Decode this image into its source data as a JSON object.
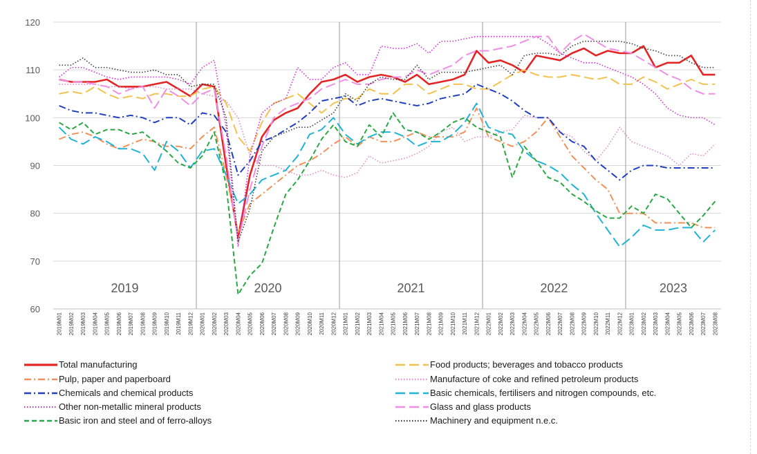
{
  "chart_data": {
    "type": "line",
    "title": "",
    "xlabel": "",
    "ylabel": "",
    "ylim": [
      60,
      120
    ],
    "yticks": [
      60,
      70,
      80,
      90,
      100,
      110,
      120
    ],
    "grid": true,
    "legend_position": "bottom",
    "x": [
      "2019M01",
      "2019M02",
      "2019M03",
      "2019M04",
      "2019M05",
      "2019M06",
      "2019M07",
      "2019M08",
      "2019M09",
      "2019M10",
      "2019M11",
      "2019M12",
      "2020M01",
      "2020M02",
      "2020M03",
      "2020M04",
      "2020M05",
      "2020M06",
      "2020M07",
      "2020M08",
      "2020M09",
      "2020M10",
      "2020M11",
      "2020M12",
      "2021M01",
      "2021M02",
      "2021M03",
      "2021M04",
      "2021M05",
      "2021M06",
      "2021M07",
      "2021M08",
      "2021M09",
      "2021M10",
      "2021M11",
      "2021M12",
      "2022M01",
      "2022M02",
      "2022M03",
      "2022M04",
      "2022M05",
      "2022M06",
      "2022M07",
      "2022M08",
      "2022M09",
      "2022M10",
      "2022M11",
      "2022M12",
      "2023M01",
      "2023M02",
      "2023M03",
      "2023M04",
      "2023M05",
      "2023M06",
      "2023M07",
      "2023M08"
    ],
    "year_labels": [
      "2019",
      "2020",
      "2021",
      "2022",
      "2023"
    ],
    "series": [
      {
        "name": "Total manufacturing",
        "color": "#e32424",
        "dash": "solid",
        "values": [
          108,
          107.5,
          107.5,
          107.5,
          108,
          106.5,
          106.5,
          106.5,
          107,
          107.5,
          106,
          104.5,
          107,
          106.5,
          90,
          75,
          88,
          96,
          99.5,
          101,
          102,
          105,
          107.5,
          108,
          109,
          107.5,
          108.5,
          109,
          108.5,
          107.5,
          109,
          107,
          107.5,
          108,
          109,
          114,
          111.5,
          112,
          111,
          109.5,
          113,
          112.5,
          112,
          113.5,
          114.5,
          113,
          114,
          113.5,
          113.5,
          115,
          110.5,
          111.5,
          111.5,
          113,
          109,
          109
        ]
      },
      {
        "name": "Food products; beverages and tobacco products",
        "color": "#f2c14e",
        "dash": "longdash",
        "values": [
          105,
          105.5,
          105,
          106.5,
          105,
          104,
          104.5,
          104,
          105,
          105,
          104.5,
          104.5,
          106,
          106.5,
          103,
          96,
          93,
          99,
          103,
          104,
          105,
          103,
          101,
          103,
          104,
          104,
          106,
          105,
          105,
          107,
          107,
          105,
          106,
          107,
          107,
          106,
          106,
          107.5,
          109,
          110,
          109,
          108.5,
          108.5,
          109,
          108.5,
          108,
          108.5,
          107,
          107,
          108.5,
          107.5,
          106,
          107,
          108,
          107,
          107
        ]
      },
      {
        "name": "Pulp, paper and paperboard",
        "color": "#f0915a",
        "dash": "dashdot",
        "values": [
          95.5,
          96.5,
          97,
          96,
          94.5,
          93.5,
          94.5,
          95.5,
          95,
          94,
          94,
          93.5,
          96,
          98,
          88,
          76,
          82,
          84,
          86,
          88,
          90,
          91,
          92.5,
          94.5,
          96,
          94,
          96,
          95,
          95,
          96,
          97,
          96,
          96,
          96,
          97,
          102,
          96,
          95,
          94,
          95,
          97,
          100,
          96,
          92,
          89.5,
          87,
          85,
          80,
          80,
          80,
          78,
          78,
          78,
          78,
          77,
          77
        ]
      },
      {
        "name": "Manufacture of coke and refined petroleum products",
        "color": "#d98cc8",
        "dash": "dotted",
        "values": [
          107,
          107,
          107,
          107,
          106.5,
          106.5,
          106,
          106.5,
          106.5,
          106,
          106,
          106,
          105,
          104.5,
          103.5,
          100,
          92,
          90,
          90,
          89,
          88,
          88,
          89,
          88,
          87.5,
          88.5,
          92,
          90.5,
          91,
          91.5,
          92.5,
          94,
          97,
          98,
          95,
          96,
          96,
          97,
          97.5,
          100.5,
          100,
          100,
          97,
          96,
          93,
          91,
          94,
          98,
          95,
          94,
          93,
          92,
          90,
          92.5,
          92,
          94.5
        ]
      },
      {
        "name": "Chemicals and chemical products",
        "color": "#1f3fbf",
        "dash": "dashdot",
        "values": [
          102.5,
          101.5,
          101,
          101,
          100.5,
          100,
          100.5,
          100,
          99,
          100,
          100,
          98.5,
          101,
          100.5,
          97,
          88,
          91,
          95,
          96,
          97.5,
          99,
          101,
          103.5,
          104,
          104.5,
          102.5,
          103.5,
          104,
          103.5,
          103,
          102.5,
          103,
          104,
          104.5,
          105,
          107,
          106,
          105,
          103.5,
          101.5,
          100,
          100,
          97,
          95,
          94,
          91,
          89,
          87,
          89,
          90,
          90,
          89.5,
          89.5,
          89.5,
          89.5,
          89.5
        ]
      },
      {
        "name": "Basic chemicals, fertilisers and nitrogen compounds, etc.",
        "color": "#1fb3d6",
        "dash": "longdash",
        "values": [
          98,
          95.5,
          94.5,
          96,
          95,
          93.5,
          93.5,
          92.5,
          89,
          95,
          93,
          89.5,
          93,
          93.5,
          88,
          82,
          84,
          87,
          88,
          89,
          92,
          96.5,
          97.5,
          100,
          96.5,
          94.5,
          96,
          97,
          97,
          96,
          94,
          95,
          95,
          96.5,
          99,
          103,
          98,
          97,
          96.5,
          93,
          91,
          90,
          88.5,
          86,
          84,
          80,
          76.5,
          73,
          75,
          77.5,
          76.5,
          76.5,
          77,
          77,
          74,
          76.5
        ]
      },
      {
        "name": "Other non-metallic mineral products",
        "color": "#d22bd6",
        "dash": "dotted",
        "values": [
          108.5,
          110.5,
          110.5,
          109.5,
          108.5,
          108,
          108.5,
          108.5,
          108.5,
          108.5,
          108,
          107,
          110.5,
          112,
          98,
          73,
          92,
          101,
          103,
          104,
          110.5,
          108,
          108,
          110.5,
          111.5,
          109,
          109,
          115,
          114.5,
          114.5,
          115.5,
          113.5,
          116,
          116,
          116.5,
          117,
          117,
          117,
          117,
          117,
          117,
          115.5,
          113.5,
          112.5,
          111.5,
          111.5,
          110.5,
          109.5,
          108.5,
          107,
          105,
          102,
          100.5,
          100,
          100,
          98.5
        ]
      },
      {
        "name": "Glass and glass products",
        "color": "#f08ee6",
        "dash": "longdash",
        "values": [
          108,
          107.5,
          107.5,
          107,
          106.5,
          105,
          106,
          106.5,
          102,
          106,
          104.5,
          102.5,
          105,
          106,
          92,
          74,
          85,
          94,
          100,
          102,
          103,
          104,
          106,
          107,
          108,
          107,
          107,
          108,
          108.5,
          108.5,
          110,
          109,
          110,
          111,
          113,
          114,
          114,
          114.5,
          115,
          116,
          117,
          117,
          113.5,
          116,
          117.5,
          116,
          114.5,
          114,
          113.5,
          112,
          110.5,
          109,
          108,
          106,
          105,
          105
        ]
      },
      {
        "name": "Basic iron and steel and of ferro-alloys",
        "color": "#27a844",
        "dash": "dashed",
        "values": [
          99,
          97.5,
          99,
          96.5,
          97.5,
          97.5,
          96.5,
          97,
          95,
          93,
          90.5,
          89.5,
          92,
          97,
          86,
          63,
          67,
          69.5,
          77,
          84,
          87,
          91,
          95.5,
          98.5,
          95,
          94,
          98.5,
          96,
          101,
          97.5,
          97,
          95.5,
          97,
          99,
          100,
          98,
          97,
          96,
          87.5,
          94,
          91,
          87.5,
          86.5,
          84,
          82.5,
          80.5,
          79,
          79,
          81.5,
          80,
          84,
          83,
          80,
          77,
          79.5,
          82.5
        ]
      },
      {
        "name": "Machinery and equipment n.e.c.",
        "color": "#3a3a3a",
        "dash": "dotted",
        "values": [
          111,
          111,
          112.5,
          110.5,
          110.5,
          110,
          109.5,
          109.5,
          110,
          109,
          109,
          106.5,
          107,
          107,
          100,
          74,
          81,
          93,
          96,
          97,
          98,
          98,
          99.5,
          101,
          105,
          103.5,
          107,
          108.5,
          108,
          108,
          111,
          108,
          109.5,
          109.5,
          109.5,
          110,
          110.5,
          111,
          109,
          113,
          113.5,
          113.5,
          113,
          115,
          116,
          116,
          116,
          116,
          115.5,
          114.5,
          114,
          113,
          113,
          111.5,
          110.5,
          110.5
        ]
      }
    ]
  }
}
